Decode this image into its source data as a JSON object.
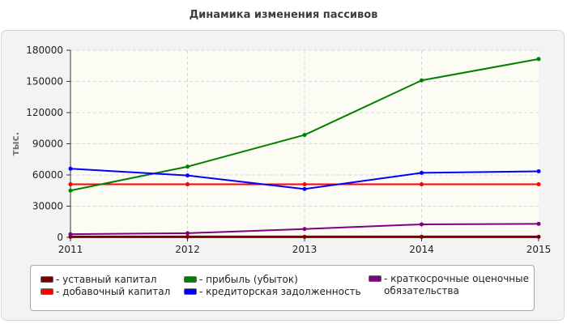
{
  "chart_data": {
    "type": "line",
    "title": "Динамика изменения пассивов",
    "ylabel": "тыс.",
    "xlabel": "",
    "x": [
      "2011",
      "2012",
      "2013",
      "2014",
      "2015"
    ],
    "ylim": [
      0,
      180000
    ],
    "yticks": [
      "0",
      "30000",
      "60000",
      "90000",
      "120000",
      "150000",
      "180000"
    ],
    "grid": true,
    "legend_position": "bottom",
    "series": [
      {
        "name": "- уставный капитал",
        "color": "#7a0000",
        "values": [
          500,
          500,
          500,
          500,
          500
        ]
      },
      {
        "name": "- добавочный капитал",
        "color": "#ff0000",
        "values": [
          51000,
          51000,
          51000,
          51000,
          51000
        ]
      },
      {
        "name": "- прибыль (убыток)",
        "color": "#008000",
        "values": [
          45000,
          68000,
          98500,
          151000,
          171500
        ]
      },
      {
        "name": "- кредиторская задолженность",
        "color": "#0000ff",
        "values": [
          66000,
          59500,
          46500,
          62000,
          63500
        ]
      },
      {
        "name": "- краткосрочные оценочные обязательства",
        "color": "#800080",
        "values": [
          3000,
          4000,
          8000,
          12500,
          13000
        ]
      }
    ]
  }
}
